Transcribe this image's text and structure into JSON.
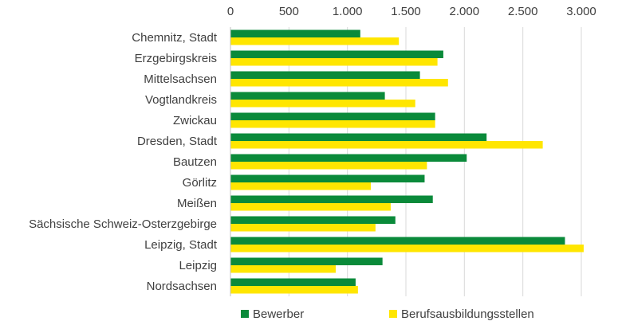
{
  "chart_data": {
    "type": "bar",
    "orientation": "horizontal",
    "x_axis_position": "top",
    "grid": true,
    "legend_position": "bottom",
    "xlim": [
      0,
      3000
    ],
    "x_ticks": [
      0,
      500,
      1000,
      1500,
      2000,
      2500,
      3000
    ],
    "x_tick_labels": [
      "0",
      "500",
      "1.000",
      "1.500",
      "2.000",
      "2.500",
      "3.000"
    ],
    "categories": [
      "Chemnitz, Stadt",
      "Erzgebirgskreis",
      "Mittelsachsen",
      "Vogtlandkreis",
      "Zwickau",
      "Dresden, Stadt",
      "Bautzen",
      "Görlitz",
      "Meißen",
      "Sächsische Schweiz-Osterzgebirge",
      "Leipzig, Stadt",
      "Leipzig",
      "Nordsachsen"
    ],
    "series": [
      {
        "name": "Bewerber",
        "color": "#0a8a3a",
        "values": [
          1110,
          1820,
          1620,
          1320,
          1750,
          2190,
          2020,
          1660,
          1730,
          1410,
          2860,
          1300,
          1070
        ]
      },
      {
        "name": "Berufsausbildungsstellen",
        "color": "#ffe600",
        "values": [
          1440,
          1770,
          1860,
          1580,
          1750,
          2670,
          1680,
          1200,
          1370,
          1240,
          3020,
          900,
          1090
        ]
      }
    ]
  }
}
